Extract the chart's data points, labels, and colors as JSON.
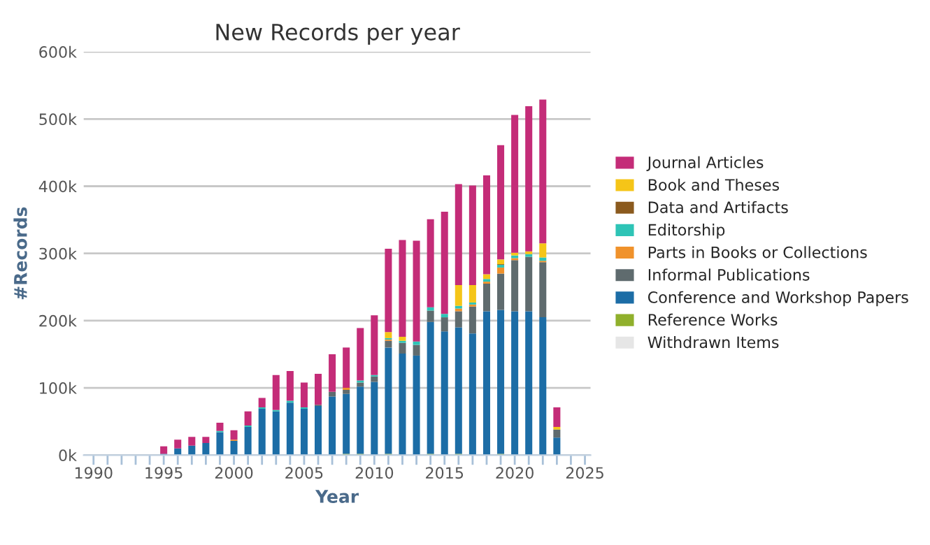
{
  "chart_data": {
    "type": "bar",
    "title": "New Records per year",
    "xlabel": "Year",
    "ylabel": "#Records",
    "stacked": true,
    "grid": "y",
    "legend": "right",
    "x": [
      1995,
      1996,
      1997,
      1998,
      1999,
      2000,
      2001,
      2002,
      2003,
      2004,
      2005,
      2006,
      2007,
      2008,
      2009,
      2010,
      2011,
      2012,
      2013,
      2014,
      2015,
      2016,
      2017,
      2018,
      2019,
      2020,
      2021,
      2022,
      2023
    ],
    "xlim": [
      1989.3,
      2025.4
    ],
    "xticks": [
      1990,
      {
        "value": 1991,
        "label": null
      },
      {
        "value": 1992,
        "label": null
      },
      {
        "value": 1993,
        "label": null
      },
      {
        "value": 1994,
        "label": null
      },
      1995,
      {
        "value": 1996,
        "label": null
      },
      {
        "value": 1997,
        "label": null
      },
      {
        "value": 1998,
        "label": null
      },
      {
        "value": 1999,
        "label": null
      },
      2000,
      {
        "value": 2001,
        "label": null
      },
      {
        "value": 2002,
        "label": null
      },
      {
        "value": 2003,
        "label": null
      },
      {
        "value": 2004,
        "label": null
      },
      2005,
      {
        "value": 2006,
        "label": null
      },
      {
        "value": 2007,
        "label": null
      },
      {
        "value": 2008,
        "label": null
      },
      {
        "value": 2009,
        "label": null
      },
      2010,
      {
        "value": 2011,
        "label": null
      },
      {
        "value": 2012,
        "label": null
      },
      {
        "value": 2013,
        "label": null
      },
      {
        "value": 2014,
        "label": null
      },
      2015,
      {
        "value": 2016,
        "label": null
      },
      {
        "value": 2017,
        "label": null
      },
      {
        "value": 2018,
        "label": null
      },
      {
        "value": 2019,
        "label": null
      },
      2020,
      {
        "value": 2021,
        "label": null
      },
      {
        "value": 2022,
        "label": null
      },
      {
        "value": 2023,
        "label": null
      },
      {
        "value": 2024,
        "label": null
      },
      2025
    ],
    "ylim": [
      0,
      600000
    ],
    "yticks": [
      {
        "value": 0,
        "label": "0k"
      },
      {
        "value": 100000,
        "label": "100k"
      },
      {
        "value": 200000,
        "label": "200k"
      },
      {
        "value": 300000,
        "label": "300k"
      },
      {
        "value": 400000,
        "label": "400k"
      },
      {
        "value": 500000,
        "label": "500k"
      },
      {
        "value": 600000,
        "label": "600k"
      }
    ],
    "series": [
      {
        "name": "Withdrawn Items",
        "color": "#e6e6e6",
        "values": [
          0,
          0,
          0,
          0,
          0,
          0,
          0,
          0,
          0,
          0,
          0,
          0,
          0,
          0,
          0,
          0,
          0,
          0,
          0,
          0,
          0,
          0,
          0,
          0,
          0,
          0,
          0,
          0,
          0
        ]
      },
      {
        "name": "Reference Works",
        "color": "#90b02c",
        "values": [
          0,
          0,
          0,
          0,
          0,
          0,
          0,
          0,
          0,
          0,
          0,
          0,
          0,
          2000,
          2000,
          0,
          2000,
          0,
          0,
          2000,
          0,
          2000,
          0,
          0,
          2000,
          0,
          0,
          0,
          0
        ]
      },
      {
        "name": "Conference and Workshop Papers",
        "color": "#1c6da6",
        "values": [
          2000,
          10000,
          14000,
          18000,
          34000,
          21000,
          42000,
          69000,
          65000,
          78000,
          69000,
          73000,
          87000,
          89000,
          100000,
          109000,
          158000,
          151000,
          148000,
          196000,
          184000,
          188000,
          181000,
          214000,
          214000,
          214000,
          214000,
          205000,
          26000
        ]
      },
      {
        "name": "Informal Publications",
        "color": "#5f6b6e",
        "values": [
          0,
          0,
          0,
          0,
          0,
          0,
          0,
          0,
          0,
          0,
          0,
          2000,
          7000,
          6000,
          6000,
          8000,
          10000,
          16000,
          16000,
          17000,
          21000,
          24000,
          40000,
          41000,
          54000,
          76000,
          81000,
          82000,
          12000
        ]
      },
      {
        "name": "Parts in Books or Collections",
        "color": "#f0922b",
        "values": [
          0,
          0,
          0,
          0,
          0,
          2000,
          0,
          0,
          0,
          0,
          0,
          0,
          0,
          3000,
          0,
          0,
          2000,
          0,
          0,
          0,
          0,
          4000,
          3000,
          3000,
          9000,
          3000,
          0,
          2000,
          0
        ]
      },
      {
        "name": "Editorship",
        "color": "#2ec4b6",
        "values": [
          0,
          0,
          0,
          0,
          2000,
          0,
          2000,
          2000,
          2000,
          3000,
          2000,
          0,
          0,
          0,
          3000,
          2000,
          2000,
          3000,
          5000,
          5000,
          5000,
          4000,
          3000,
          4000,
          4000,
          4000,
          4000,
          5000,
          0
        ]
      },
      {
        "name": "Data and Artifacts",
        "color": "#8b5a1e",
        "values": [
          0,
          0,
          0,
          0,
          0,
          0,
          0,
          0,
          0,
          0,
          0,
          0,
          0,
          0,
          0,
          0,
          0,
          0,
          0,
          0,
          0,
          0,
          0,
          0,
          1000,
          0,
          0,
          0,
          0
        ]
      },
      {
        "name": "Book and Theses",
        "color": "#f5c518",
        "values": [
          0,
          0,
          0,
          0,
          0,
          0,
          0,
          0,
          0,
          0,
          0,
          0,
          0,
          0,
          0,
          0,
          9000,
          6000,
          0,
          0,
          0,
          31000,
          26000,
          7000,
          7000,
          4000,
          4000,
          21000,
          4000
        ]
      },
      {
        "name": "Journal Articles",
        "color": "#c42c78",
        "values": [
          11000,
          13000,
          13000,
          9000,
          12000,
          14000,
          21000,
          14000,
          52000,
          44000,
          37000,
          46000,
          56000,
          60000,
          78000,
          89000,
          124000,
          144000,
          150000,
          131000,
          152000,
          150000,
          148000,
          147000,
          170000,
          205000,
          216000,
          214000,
          29000
        ]
      }
    ]
  }
}
